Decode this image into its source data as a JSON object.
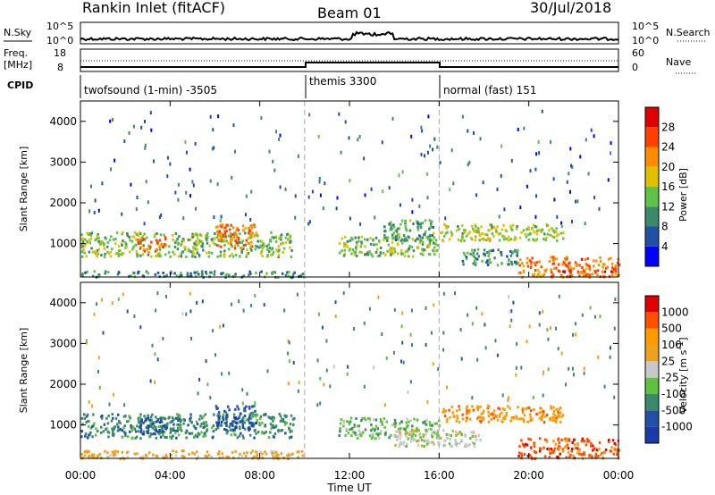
{
  "header": {
    "station": "Rankin Inlet (fitACF)",
    "beam": "Beam 01",
    "date": "30/Jul/2018"
  },
  "top_panels": {
    "nsky_label": "N.Sky",
    "nsky_ticks": [
      "10^5",
      "10^0"
    ],
    "nsearch_label": "N.Search",
    "nsearch_ticks": [
      "10^5",
      "10^0"
    ],
    "freq_label": "Freq.",
    "freq_unit": "[MHz]",
    "freq_ticks": [
      "18",
      "8"
    ],
    "nave_label": "Nave",
    "nave_ticks": [
      "60",
      "0"
    ],
    "cpid_label": "CPID"
  },
  "cpid_segments": [
    {
      "label": "twofsound (1-min) -3505",
      "start": "00:00",
      "end": "10:00"
    },
    {
      "label": "themis 3300",
      "start": "10:00",
      "end": "16:00"
    },
    {
      "label": "normal (fast) 151",
      "start": "16:00",
      "end": "24:00"
    }
  ],
  "chart_data": [
    {
      "type": "heatmap",
      "name": "power",
      "ylabel": "Slant Range [km]",
      "yticks": [
        "4000",
        "3000",
        "2000",
        "1000"
      ],
      "ylim": [
        180,
        4500
      ],
      "xticks": [
        "00:00",
        "04:00",
        "08:00",
        "12:00",
        "16:00",
        "20:00",
        "00:00"
      ],
      "xlim_hours": [
        0,
        24
      ],
      "colorbar": {
        "label": "Power [dB]",
        "ticks": [
          "28",
          "24",
          "20",
          "16",
          "12",
          "8",
          "4"
        ],
        "colors": [
          "#0000ff",
          "#2050a8",
          "#3a8a6a",
          "#5fc24a",
          "#e0c000",
          "#ff8c00",
          "#ff4000",
          "#e00000"
        ]
      },
      "regions": [
        {
          "t0": 0.0,
          "t1": 9.5,
          "r0": 700,
          "r1": 1300,
          "level": 12
        },
        {
          "t0": 2.5,
          "t1": 3.8,
          "r0": 800,
          "r1": 1200,
          "level": 22
        },
        {
          "t0": 6.0,
          "t1": 7.8,
          "r0": 900,
          "r1": 1500,
          "level": 20
        },
        {
          "t0": 0.0,
          "t1": 10.0,
          "r0": 200,
          "r1": 350,
          "level": 8
        },
        {
          "t0": 11.5,
          "t1": 16.0,
          "r0": 700,
          "r1": 1200,
          "level": 12
        },
        {
          "t0": 13.5,
          "t1": 15.8,
          "r0": 1100,
          "r1": 1600,
          "level": 10
        },
        {
          "t0": 16.0,
          "t1": 21.5,
          "r0": 1100,
          "r1": 1500,
          "level": 14
        },
        {
          "t0": 19.5,
          "t1": 24.0,
          "r0": 200,
          "r1": 700,
          "level": 22
        },
        {
          "t0": 17.0,
          "t1": 19.5,
          "r0": 500,
          "r1": 900,
          "level": 8
        }
      ]
    },
    {
      "type": "heatmap",
      "name": "velocity",
      "ylabel": "Slant Range [km]",
      "yticks": [
        "4000",
        "3000",
        "2000",
        "1000"
      ],
      "ylim": [
        180,
        4500
      ],
      "xticks": [
        "00:00",
        "04:00",
        "08:00",
        "12:00",
        "16:00",
        "20:00",
        "00:00"
      ],
      "xlabel": "Time UT",
      "xlim_hours": [
        0,
        24
      ],
      "colorbar": {
        "label": "Velocity",
        "unit": "[m s",
        "unit_sup": "-1",
        "unit_close": "]",
        "ticks": [
          "1000",
          "500",
          "100",
          "25",
          "-25",
          "-100",
          "-500",
          "-1000"
        ],
        "colors": [
          "#e00000",
          "#ff5000",
          "#ff9a00",
          "#f0a020",
          "#c8c8c8",
          "#60c040",
          "#3a8a6a",
          "#2050a8",
          "#1a3aaa"
        ]
      },
      "regions": [
        {
          "t0": 0.0,
          "t1": 9.5,
          "r0": 700,
          "r1": 1300,
          "level": 6
        },
        {
          "t0": 2.5,
          "t1": 3.8,
          "r0": 800,
          "r1": 1200,
          "level": 7
        },
        {
          "t0": 6.0,
          "t1": 7.8,
          "r0": 900,
          "r1": 1500,
          "level": 7
        },
        {
          "t0": 0.0,
          "t1": 10.0,
          "r0": 200,
          "r1": 400,
          "level": 3
        },
        {
          "t0": 11.5,
          "t1": 16.0,
          "r0": 700,
          "r1": 1200,
          "level": 5
        },
        {
          "t0": 16.0,
          "t1": 21.5,
          "r0": 1100,
          "r1": 1500,
          "level": 2
        },
        {
          "t0": 14.0,
          "t1": 18.0,
          "r0": 500,
          "r1": 900,
          "level": 4
        },
        {
          "t0": 19.5,
          "t1": 24.0,
          "r0": 200,
          "r1": 700,
          "level": 1
        }
      ]
    }
  ]
}
